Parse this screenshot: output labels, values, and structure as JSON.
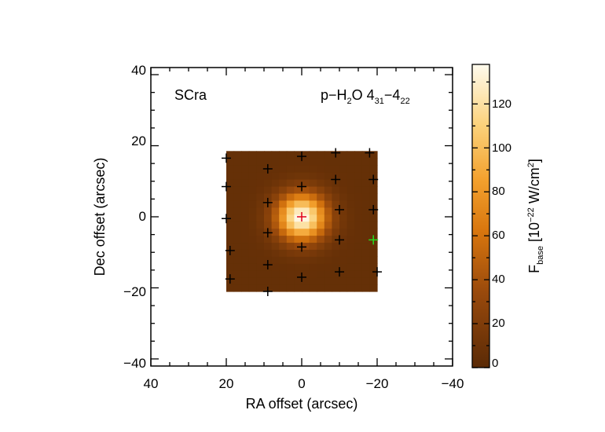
{
  "chart_data": {
    "type": "heatmap",
    "xlabel": "RA offset (arcsec)",
    "ylabel": "Dec offset (arcsec)",
    "xlim": [
      40,
      -40
    ],
    "ylim": [
      -42,
      42
    ],
    "xticks": [
      40,
      20,
      0,
      -20,
      -40
    ],
    "yticks": [
      40,
      20,
      0,
      -20,
      -40
    ],
    "tick_labels_x": [
      "40",
      "20",
      "0",
      "−20",
      "−40"
    ],
    "tick_labels_y": [
      "40",
      "20",
      "0",
      "−20",
      "−40"
    ],
    "map_extent": {
      "ra": [
        20,
        -20
      ],
      "dec": [
        -21,
        18.5
      ]
    },
    "peak": {
      "ra": 0,
      "dec": 0,
      "value": 138
    },
    "source_label": "SCra",
    "line_label": {
      "species": "p−H",
      "sub1": "2",
      "mid": "O 4",
      "sub2": "31",
      "sep": "−4",
      "sub3": "22"
    },
    "colorbar": {
      "min": 0,
      "max": 138,
      "ticks": [
        0,
        20,
        40,
        60,
        80,
        100,
        120
      ],
      "tick_labels": [
        "0",
        "20",
        "40",
        "60",
        "80",
        "100",
        "120"
      ],
      "label_main": "F",
      "label_sub": "base",
      "label_unit": " [10",
      "label_exp": "−22",
      "label_unit2": " W/cm",
      "label_exp2": "2",
      "label_end": "]"
    },
    "spaxels": [
      {
        "ra": 20,
        "dec": 16.5,
        "color": "black"
      },
      {
        "ra": 9,
        "dec": 13.5,
        "color": "black"
      },
      {
        "ra": 0,
        "dec": 17,
        "color": "black"
      },
      {
        "ra": -9,
        "dec": 18,
        "color": "black"
      },
      {
        "ra": -18,
        "dec": 18,
        "color": "black"
      },
      {
        "ra": 20,
        "dec": 8.5,
        "color": "black"
      },
      {
        "ra": 0,
        "dec": 8.5,
        "color": "black"
      },
      {
        "ra": -9,
        "dec": 10.5,
        "color": "black"
      },
      {
        "ra": -19,
        "dec": 10.5,
        "color": "black"
      },
      {
        "ra": 9,
        "dec": 4,
        "color": "black"
      },
      {
        "ra": 20,
        "dec": -0.5,
        "color": "black"
      },
      {
        "ra": 0,
        "dec": 0,
        "color": "red"
      },
      {
        "ra": -10,
        "dec": 2,
        "color": "black"
      },
      {
        "ra": -19,
        "dec": 2,
        "color": "black"
      },
      {
        "ra": 9,
        "dec": -4.5,
        "color": "black"
      },
      {
        "ra": -10,
        "dec": -6.5,
        "color": "black"
      },
      {
        "ra": -19,
        "dec": -6.5,
        "color": "green"
      },
      {
        "ra": 19,
        "dec": -9.5,
        "color": "black"
      },
      {
        "ra": 0,
        "dec": -8.5,
        "color": "black"
      },
      {
        "ra": 9,
        "dec": -13.5,
        "color": "black"
      },
      {
        "ra": -10,
        "dec": -15.5,
        "color": "black"
      },
      {
        "ra": -20,
        "dec": -15.5,
        "color": "black"
      },
      {
        "ra": 19,
        "dec": -17.5,
        "color": "black"
      },
      {
        "ra": 0,
        "dec": -17,
        "color": "black"
      },
      {
        "ra": 9,
        "dec": -21,
        "color": "black"
      }
    ],
    "grid": false
  }
}
